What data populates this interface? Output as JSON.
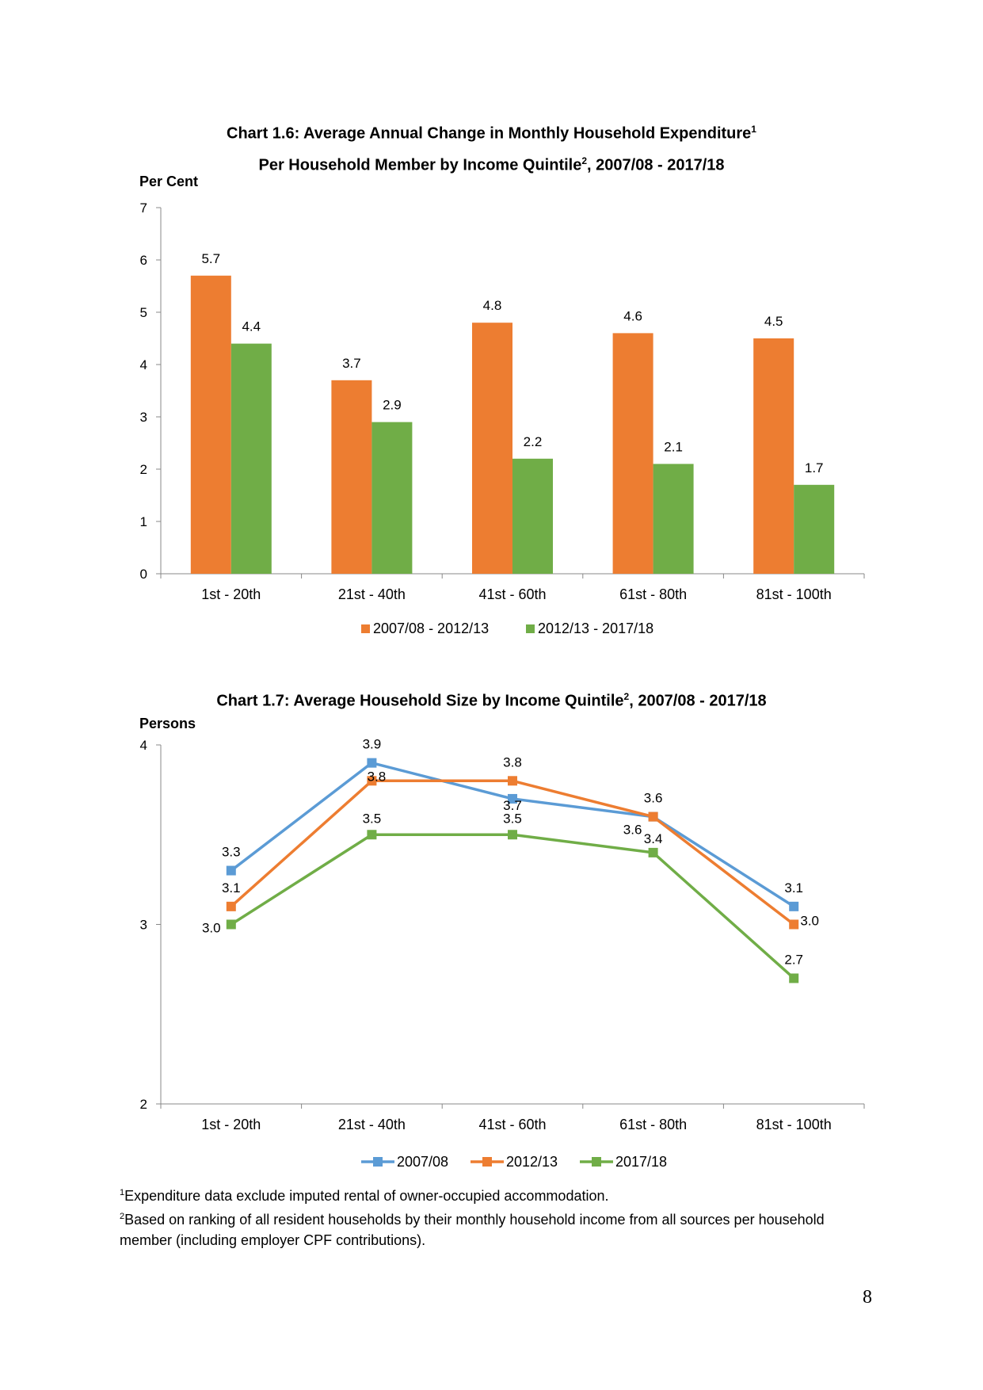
{
  "chart_data": [
    {
      "type": "bar",
      "title_line1": "Chart 1.6: Average Annual Change in Monthly Household Expenditure",
      "title_sup1": "1",
      "title_line2a": "Per Household Member by Income Quintile",
      "title_sup2": "2",
      "title_line2b": ", 2007/08 - 2017/18",
      "ylabel": "Per Cent",
      "xlabel": "",
      "ylim": [
        0,
        7
      ],
      "yticks": [
        0,
        1,
        2,
        3,
        4,
        5,
        6,
        7
      ],
      "categories": [
        "1st - 20th",
        "21st - 40th",
        "41st - 60th",
        "61st - 80th",
        "81st - 100th"
      ],
      "series": [
        {
          "name": "2007/08 - 2012/13",
          "color": "#ED7D31",
          "values": [
            5.7,
            3.7,
            4.8,
            4.6,
            4.5
          ],
          "labels": [
            "5.7",
            "3.7",
            "4.8",
            "4.6",
            "4.5"
          ]
        },
        {
          "name": "2012/13 - 2017/18",
          "color": "#70AD47",
          "values": [
            4.4,
            2.9,
            2.2,
            2.1,
            1.7
          ],
          "labels": [
            "4.4",
            "2.9",
            "2.2",
            "2.1",
            "1.7"
          ]
        }
      ],
      "legend_position": "bottom",
      "grid": false
    },
    {
      "type": "line",
      "title_a": "Chart 1.7: Average Household Size by Income Quintile",
      "title_sup": "2",
      "title_b": ", 2007/08 - 2017/18",
      "ylabel": "Persons",
      "xlabel": "",
      "ylim": [
        2,
        4
      ],
      "yticks": [
        2,
        3,
        4
      ],
      "categories": [
        "1st - 20th",
        "21st - 40th",
        "41st - 60th",
        "61st - 80th",
        "81st - 100th"
      ],
      "series": [
        {
          "name": "2007/08",
          "color": "#5B9BD5",
          "values": [
            3.3,
            3.9,
            3.7,
            3.6,
            3.1
          ],
          "labels": [
            "3.3",
            "3.9",
            "3.7",
            "3.6",
            "3.1"
          ]
        },
        {
          "name": "2012/13",
          "color": "#ED7D31",
          "values": [
            3.1,
            3.8,
            3.8,
            3.6,
            3.0
          ],
          "labels": [
            "3.1",
            "3.8",
            "3.8",
            "3.6",
            "3.0"
          ]
        },
        {
          "name": "2017/18",
          "color": "#70AD47",
          "values": [
            3.0,
            3.5,
            3.5,
            3.4,
            2.7
          ],
          "labels": [
            "3.0",
            "3.5",
            "3.5",
            "3.4",
            "2.7"
          ]
        }
      ],
      "legend_position": "bottom",
      "grid": false
    }
  ],
  "footnotes": [
    {
      "sup": "1",
      "text": "Expenditure data exclude imputed rental of owner-occupied accommodation."
    },
    {
      "sup": "2",
      "text": "Based on ranking of all resident households by their monthly household income from all sources per household member (including employer CPF contributions)."
    }
  ],
  "page_number": "8"
}
